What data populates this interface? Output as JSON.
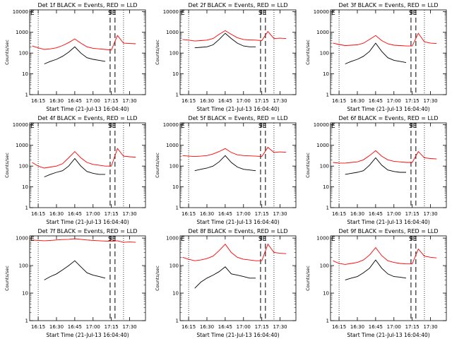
{
  "colors": {
    "events": "#000000",
    "lld": "#ff0000",
    "axes": "#000000"
  },
  "common": {
    "xlabel": "Start Time (21-Jul-13 16:04:40)",
    "ylabel": "Counts/sec",
    "xticks": [
      "16:15",
      "16:30",
      "16:45",
      "17:00",
      "17:15",
      "17:30"
    ],
    "yticks": [
      "1",
      "10",
      "100",
      "1000",
      "10000"
    ],
    "left_marker": "E",
    "right_marker": "SE",
    "series_names": [
      "Events",
      "LLD"
    ]
  },
  "chart_data": [
    {
      "type": "line",
      "title": "Det 1f BLACK = Events, RED = LLD",
      "xlabel": "Start Time (21-Jul-13 16:04:40)",
      "ylabel": "Counts/sec",
      "ylim": [
        1,
        12000
      ],
      "y_scale": "log",
      "x": [
        "16:10",
        "16:15",
        "16:20",
        "16:25",
        "16:30",
        "16:35",
        "16:40",
        "16:45",
        "16:50",
        "16:55",
        "17:00",
        "17:05",
        "17:10",
        "17:15",
        "17:20",
        "17:25",
        "17:30",
        "17:35"
      ],
      "series": [
        {
          "name": "Events",
          "values": [
            null,
            null,
            30,
            40,
            50,
            70,
            110,
            200,
            100,
            60,
            50,
            45,
            40,
            null,
            null,
            null,
            null,
            null
          ]
        },
        {
          "name": "LLD",
          "values": [
            220,
            180,
            150,
            160,
            180,
            230,
            320,
            480,
            300,
            200,
            170,
            160,
            150,
            140,
            700,
            300,
            290,
            280
          ]
        }
      ],
      "vlines": {
        "dotted": [
          "16:15",
          "17:25"
        ],
        "dashed": [
          "17:14",
          "17:18"
        ]
      }
    },
    {
      "type": "line",
      "title": "Det 2f BLACK = Events, RED = LLD",
      "xlabel": "Start Time (21-Jul-13 16:04:40)",
      "ylabel": "Counts/sec",
      "ylim": [
        1,
        12000
      ],
      "y_scale": "log",
      "x": [
        "16:10",
        "16:15",
        "16:20",
        "16:25",
        "16:30",
        "16:35",
        "16:40",
        "16:45",
        "16:50",
        "16:55",
        "17:00",
        "17:05",
        "17:10",
        "17:15",
        "17:20",
        "17:25",
        "17:30",
        "17:35"
      ],
      "series": [
        {
          "name": "Events",
          "values": [
            null,
            null,
            180,
            190,
            200,
            250,
            450,
            900,
            500,
            300,
            220,
            200,
            200,
            null,
            null,
            null,
            null,
            null
          ]
        },
        {
          "name": "LLD",
          "values": [
            450,
            420,
            380,
            400,
            420,
            500,
            800,
            1200,
            800,
            550,
            450,
            430,
            420,
            400,
            1100,
            500,
            520,
            500
          ]
        }
      ],
      "vlines": {
        "dotted": [
          "16:15",
          "17:25"
        ],
        "dashed": [
          "17:14",
          "17:18"
        ]
      }
    },
    {
      "type": "line",
      "title": "Det 3f BLACK = Events, RED = LLD",
      "xlabel": "Start Time (21-Jul-13 16:04:40)",
      "ylabel": "Counts/sec",
      "ylim": [
        1,
        12000
      ],
      "y_scale": "log",
      "x": [
        "16:10",
        "16:15",
        "16:20",
        "16:25",
        "16:30",
        "16:35",
        "16:40",
        "16:45",
        "16:50",
        "16:55",
        "17:00",
        "17:05",
        "17:10",
        "17:15",
        "17:20",
        "17:25",
        "17:30",
        "17:35"
      ],
      "series": [
        {
          "name": "Events",
          "values": [
            null,
            null,
            30,
            40,
            50,
            70,
            120,
            300,
            120,
            60,
            45,
            40,
            35,
            null,
            null,
            null,
            null,
            null
          ]
        },
        {
          "name": "LLD",
          "values": [
            300,
            260,
            230,
            240,
            250,
            300,
            450,
            700,
            400,
            280,
            240,
            230,
            220,
            220,
            900,
            350,
            300,
            290
          ]
        }
      ],
      "vlines": {
        "dotted": [
          "16:15",
          "17:25"
        ],
        "dashed": [
          "17:14",
          "17:18"
        ]
      }
    },
    {
      "type": "line",
      "title": "Det 4f BLACK = Events, RED = LLD",
      "xlabel": "Start Time (21-Jul-13 16:04:40)",
      "ylabel": "Counts/sec",
      "ylim": [
        1,
        12000
      ],
      "y_scale": "log",
      "x": [
        "16:10",
        "16:15",
        "16:20",
        "16:25",
        "16:30",
        "16:35",
        "16:40",
        "16:45",
        "16:50",
        "16:55",
        "17:00",
        "17:05",
        "17:10",
        "17:15",
        "17:20",
        "17:25",
        "17:30",
        "17:35"
      ],
      "series": [
        {
          "name": "Events",
          "values": [
            null,
            null,
            30,
            40,
            50,
            60,
            100,
            230,
            100,
            55,
            45,
            40,
            40,
            null,
            null,
            null,
            null,
            null
          ]
        },
        {
          "name": "LLD",
          "values": [
            150,
            100,
            80,
            90,
            100,
            130,
            250,
            500,
            250,
            150,
            120,
            110,
            100,
            100,
            700,
            300,
            280,
            270
          ]
        }
      ],
      "vlines": {
        "dotted": [
          "16:15",
          "17:25"
        ],
        "dashed": [
          "17:14",
          "17:18"
        ]
      }
    },
    {
      "type": "line",
      "title": "Det 5f BLACK = Events, RED = LLD",
      "xlabel": "Start Time (21-Jul-13 16:04:40)",
      "ylabel": "Counts/sec",
      "ylim": [
        1,
        12000
      ],
      "y_scale": "log",
      "x": [
        "16:10",
        "16:15",
        "16:20",
        "16:25",
        "16:30",
        "16:35",
        "16:40",
        "16:45",
        "16:50",
        "16:55",
        "17:00",
        "17:05",
        "17:10",
        "17:15",
        "17:20",
        "17:25",
        "17:30",
        "17:35"
      ],
      "series": [
        {
          "name": "Events",
          "values": [
            null,
            null,
            60,
            70,
            80,
            100,
            160,
            320,
            150,
            90,
            70,
            65,
            60,
            null,
            null,
            null,
            null,
            null
          ]
        },
        {
          "name": "LLD",
          "values": [
            320,
            300,
            290,
            300,
            320,
            380,
            500,
            700,
            450,
            350,
            320,
            310,
            300,
            290,
            800,
            450,
            480,
            460
          ]
        }
      ],
      "vlines": {
        "dotted": [
          "16:15",
          "17:25"
        ],
        "dashed": [
          "17:14",
          "17:18"
        ]
      }
    },
    {
      "type": "line",
      "title": "Det 6f BLACK = Events, RED = LLD",
      "xlabel": "Start Time (21-Jul-13 16:04:40)",
      "ylabel": "Counts/sec",
      "ylim": [
        1,
        12000
      ],
      "y_scale": "log",
      "x": [
        "16:10",
        "16:15",
        "16:20",
        "16:25",
        "16:30",
        "16:35",
        "16:40",
        "16:45",
        "16:50",
        "16:55",
        "17:00",
        "17:05",
        "17:10",
        "17:15",
        "17:20",
        "17:25",
        "17:30",
        "17:35"
      ],
      "series": [
        {
          "name": "Events",
          "values": [
            null,
            null,
            40,
            45,
            50,
            60,
            110,
            250,
            110,
            65,
            55,
            50,
            50,
            null,
            null,
            null,
            null,
            null
          ]
        },
        {
          "name": "LLD",
          "values": [
            150,
            140,
            140,
            150,
            160,
            200,
            320,
            550,
            300,
            200,
            170,
            160,
            150,
            150,
            500,
            250,
            230,
            220
          ]
        }
      ],
      "vlines": {
        "dotted": [
          "16:15",
          "17:25"
        ],
        "dashed": [
          "17:14",
          "17:18"
        ]
      }
    },
    {
      "type": "line",
      "title": "Det 7f BLACK = Events, RED = LLD",
      "xlabel": "Start Time (21-Jul-13 16:04:40)",
      "ylabel": "Counts/sec",
      "ylim": [
        1,
        1200
      ],
      "y_scale": "log",
      "x": [
        "16:10",
        "16:15",
        "16:20",
        "16:25",
        "16:30",
        "16:35",
        "16:40",
        "16:45",
        "16:50",
        "16:55",
        "17:00",
        "17:05",
        "17:10",
        "17:15",
        "17:20",
        "17:25",
        "17:30",
        "17:35"
      ],
      "series": [
        {
          "name": "Events",
          "values": [
            null,
            null,
            30,
            40,
            50,
            70,
            100,
            150,
            90,
            55,
            45,
            40,
            35,
            null,
            null,
            null,
            null,
            null
          ]
        },
        {
          "name": "LLD",
          "values": [
            850,
            820,
            800,
            820,
            850,
            880,
            900,
            950,
            900,
            850,
            820,
            800,
            780,
            760,
            800,
            700,
            720,
            700
          ]
        }
      ],
      "vlines": {
        "dotted": [
          "16:15",
          "17:25"
        ],
        "dashed": [
          "17:14",
          "17:18"
        ]
      }
    },
    {
      "type": "line",
      "title": "Det 8f BLACK = Events, RED = LLD",
      "xlabel": "Start Time (21-Jul-13 16:04:40)",
      "ylabel": "Counts/sec",
      "ylim": [
        1,
        1200
      ],
      "y_scale": "log",
      "x": [
        "16:10",
        "16:15",
        "16:20",
        "16:25",
        "16:30",
        "16:35",
        "16:40",
        "16:45",
        "16:50",
        "16:55",
        "17:00",
        "17:05",
        "17:10",
        "17:15",
        "17:20",
        "17:25",
        "17:30",
        "17:35"
      ],
      "series": [
        {
          "name": "Events",
          "values": [
            null,
            null,
            15,
            25,
            35,
            45,
            60,
            90,
            50,
            45,
            40,
            35,
            35,
            null,
            null,
            null,
            null,
            null
          ]
        },
        {
          "name": "LLD",
          "values": [
            200,
            170,
            150,
            160,
            180,
            220,
            350,
            600,
            300,
            200,
            170,
            160,
            150,
            150,
            600,
            300,
            280,
            270
          ]
        }
      ],
      "vlines": {
        "dotted": [
          "16:15",
          "17:25"
        ],
        "dashed": [
          "17:14",
          "17:18"
        ]
      }
    },
    {
      "type": "line",
      "title": "Det 9f BLACK = Events, RED = LLD",
      "xlabel": "Start Time (21-Jul-13 16:04:40)",
      "ylabel": "Counts/sec",
      "ylim": [
        1,
        1200
      ],
      "y_scale": "log",
      "x": [
        "16:10",
        "16:15",
        "16:20",
        "16:25",
        "16:30",
        "16:35",
        "16:40",
        "16:45",
        "16:50",
        "16:55",
        "17:00",
        "17:05",
        "17:10",
        "17:15",
        "17:20",
        "17:25",
        "17:30",
        "17:35"
      ],
      "series": [
        {
          "name": "Events",
          "values": [
            null,
            null,
            30,
            35,
            40,
            55,
            80,
            160,
            80,
            50,
            40,
            38,
            35,
            null,
            null,
            null,
            null,
            null
          ]
        },
        {
          "name": "LLD",
          "values": [
            150,
            120,
            110,
            120,
            130,
            160,
            240,
            450,
            230,
            150,
            130,
            120,
            115,
            115,
            400,
            220,
            200,
            190
          ]
        }
      ],
      "vlines": {
        "dotted": [
          "16:15",
          "17:25"
        ],
        "dashed": [
          "17:14",
          "17:18"
        ]
      }
    }
  ]
}
